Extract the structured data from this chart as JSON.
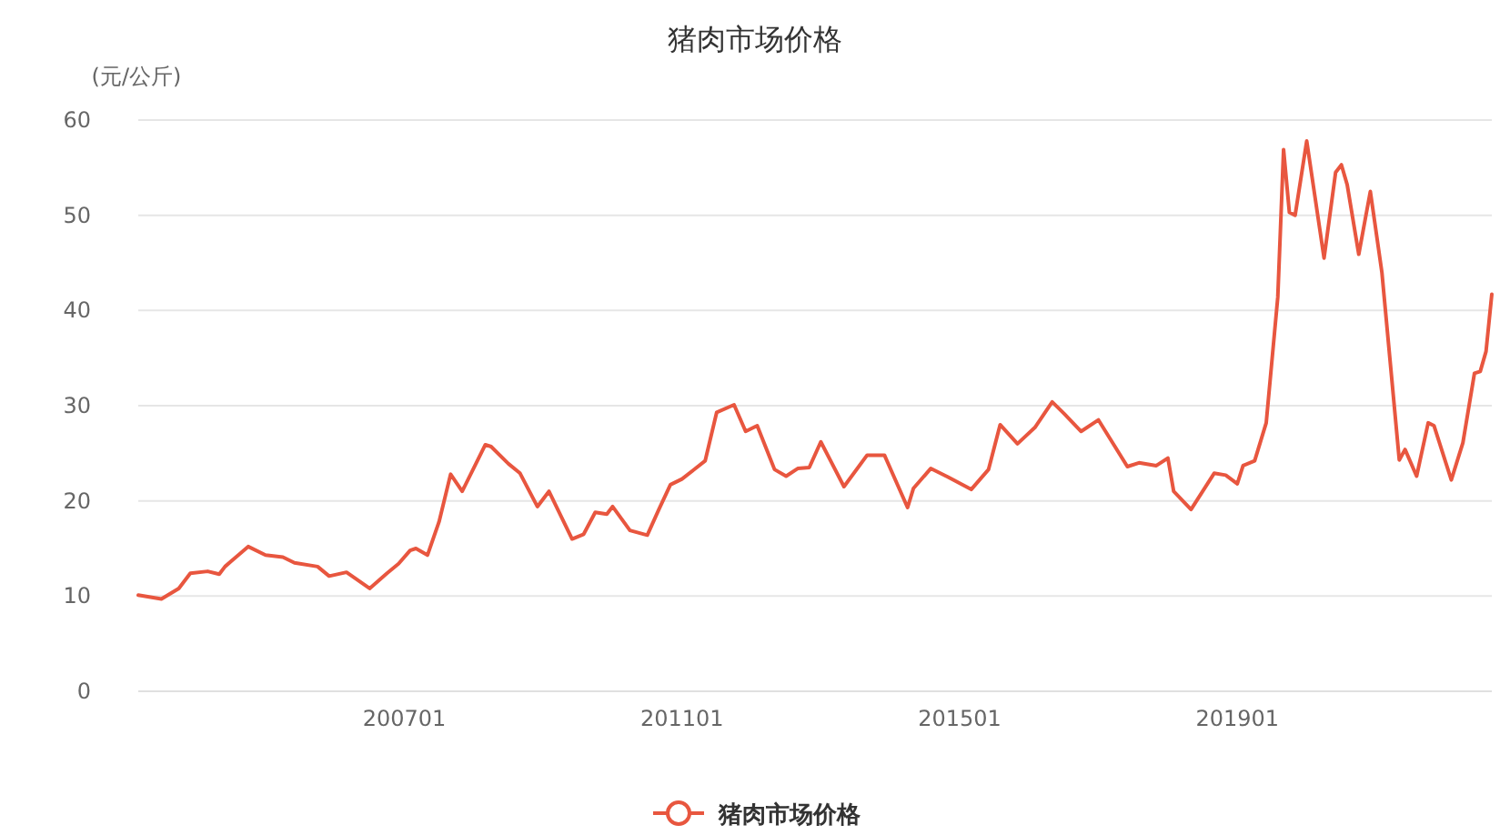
{
  "chart_data": {
    "type": "line",
    "title": "猪肉市场价格",
    "ylabel": "(元/公斤)",
    "x": [
      "2003-03",
      "2003-07",
      "2003-10",
      "2003-12",
      "2004-03",
      "2004-05",
      "2004-06",
      "2004-10",
      "2005-01",
      "2005-04",
      "2005-06",
      "2005-10",
      "2005-12",
      "2006-03",
      "2006-07",
      "2006-10",
      "2006-12",
      "2007-02",
      "2007-03",
      "2007-05",
      "2007-07",
      "2007-09",
      "2007-11",
      "2008-03",
      "2008-04",
      "2008-07",
      "2008-09",
      "2008-12",
      "2009-02",
      "2009-06",
      "2009-08",
      "2009-10",
      "2009-12",
      "2010-01",
      "2010-04",
      "2010-07",
      "2010-09",
      "2010-11",
      "2011-01",
      "2011-05",
      "2011-07",
      "2011-10",
      "2011-12",
      "2012-02",
      "2012-05",
      "2012-07",
      "2012-09",
      "2012-11",
      "2013-01",
      "2013-05",
      "2013-09",
      "2013-12",
      "2014-04",
      "2014-05",
      "2014-08",
      "2014-11",
      "2015-03",
      "2015-06",
      "2015-08",
      "2015-11",
      "2016-02",
      "2016-05",
      "2016-07",
      "2016-10",
      "2017-01",
      "2017-06",
      "2017-08",
      "2017-11",
      "2018-01",
      "2018-02",
      "2018-05",
      "2018-09",
      "2018-11",
      "2019-01",
      "2019-02",
      "2019-04",
      "2019-06",
      "2019-08",
      "2019-09",
      "2019-10",
      "2019-11",
      "2020-01",
      "2020-04",
      "2020-06",
      "2020-07",
      "2020-08",
      "2020-10",
      "2020-12",
      "2021-02",
      "2021-05",
      "2021-06",
      "2021-08",
      "2021-10",
      "2021-11",
      "2022-02",
      "2022-04",
      "2022-06",
      "2022-07",
      "2022-08",
      "2022-09"
    ],
    "series": [
      {
        "name": "猪肉市场价格",
        "color": "#e8563f",
        "values": [
          10.1,
          9.7,
          10.8,
          12.4,
          12.6,
          12.3,
          13.1,
          15.2,
          14.3,
          14.1,
          13.5,
          13.1,
          12.1,
          12.5,
          10.8,
          12.4,
          13.4,
          14.8,
          15.0,
          14.3,
          17.8,
          22.8,
          21.0,
          25.9,
          25.7,
          23.9,
          22.9,
          19.4,
          21.0,
          16.0,
          16.5,
          18.8,
          18.6,
          19.4,
          16.9,
          16.4,
          19.1,
          21.7,
          22.3,
          24.2,
          29.3,
          30.1,
          27.3,
          27.9,
          23.3,
          22.6,
          23.4,
          23.5,
          26.2,
          21.5,
          24.8,
          24.8,
          19.3,
          21.3,
          23.4,
          22.5,
          21.2,
          23.3,
          28.0,
          26.0,
          27.7,
          30.4,
          29.2,
          27.3,
          28.5,
          23.6,
          24.0,
          23.7,
          24.5,
          21.0,
          19.1,
          22.9,
          22.7,
          21.8,
          23.7,
          24.2,
          28.2,
          41.4,
          56.9,
          50.3,
          50.0,
          57.8,
          45.5,
          54.5,
          55.3,
          53.2,
          45.9,
          52.5,
          44.0,
          24.3,
          25.4,
          22.6,
          28.2,
          27.9,
          22.2,
          26.1,
          33.4,
          33.6,
          35.7,
          41.7
        ]
      }
    ],
    "xlim": [
      "2003-03",
      "2022-09"
    ],
    "xticks": [
      {
        "value": "2007-01",
        "label": "200701"
      },
      {
        "value": "2011-01",
        "label": "201101"
      },
      {
        "value": "2015-01",
        "label": "201501"
      },
      {
        "value": "2019-01",
        "label": "201901"
      }
    ],
    "ylim": [
      0,
      60
    ],
    "yticks": [
      0,
      10,
      20,
      30,
      40,
      50,
      60
    ],
    "grid": "y",
    "legend": "bottom",
    "marker": "none",
    "line_style": "solid"
  }
}
